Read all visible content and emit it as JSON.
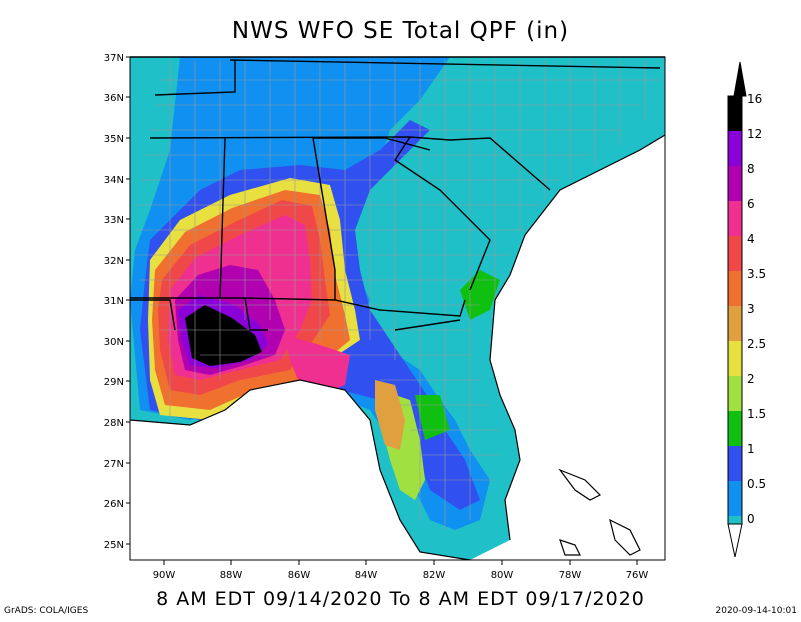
{
  "title": "NWS WFO SE Total QPF (in)",
  "subtitle": "8 AM EDT 09/14/2020 To 8 AM EDT 09/17/2020",
  "credit": "GrADS: COLA/IGES",
  "timestamp": "2020-09-14-10:01",
  "latitudes": [
    "37N",
    "36N",
    "35N",
    "34N",
    "33N",
    "32N",
    "31N",
    "30N",
    "29N",
    "28N",
    "27N",
    "26N",
    "25N"
  ],
  "longitudes": [
    "90W",
    "88W",
    "86W",
    "84W",
    "82W",
    "80W",
    "78W",
    "76W"
  ],
  "colorbar": {
    "labels": [
      "16",
      "12",
      "8",
      "6",
      "4",
      "3.5",
      "3",
      "2.5",
      "2",
      "1.5",
      "1",
      "0.5",
      "0"
    ],
    "colors": [
      "#000000",
      "#8a00d8",
      "#b000b0",
      "#f03090",
      "#f04848",
      "#f07030",
      "#e0a040",
      "#e8e040",
      "#a0e040",
      "#10c010",
      "#3050f0",
      "#1090f0",
      "#20c0c8"
    ]
  },
  "colors": {
    "state_border": "#000000",
    "county_border": "#9a9a9a",
    "background": "#ffffff"
  }
}
